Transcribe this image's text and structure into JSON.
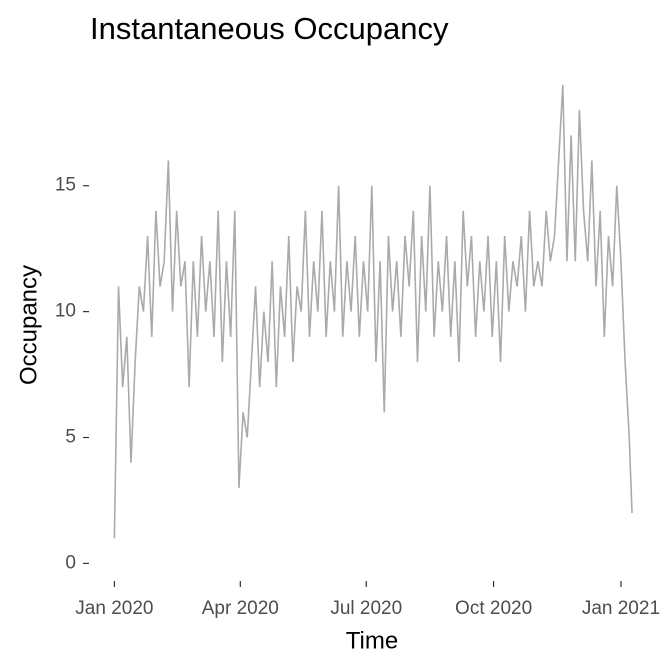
{
  "chart_data": {
    "type": "line",
    "title": "Instantaneous Occupancy",
    "x_label": "Time",
    "y_label": "Occupancy",
    "x": [
      0,
      3,
      6,
      9,
      12,
      15,
      18,
      21,
      24,
      27,
      30,
      33,
      36,
      39,
      42,
      45,
      48,
      51,
      54,
      57,
      60,
      63,
      66,
      69,
      72,
      75,
      78,
      81,
      84,
      87,
      90,
      93,
      96,
      99,
      102,
      105,
      108,
      111,
      114,
      117,
      120,
      123,
      126,
      129,
      132,
      135,
      138,
      141,
      144,
      147,
      150,
      153,
      156,
      159,
      162,
      165,
      168,
      171,
      174,
      177,
      180,
      183,
      186,
      189,
      192,
      195,
      198,
      201,
      204,
      207,
      210,
      213,
      216,
      219,
      222,
      225,
      228,
      231,
      234,
      237,
      240,
      243,
      246,
      249,
      252,
      255,
      258,
      261,
      264,
      267,
      270,
      273,
      276,
      279,
      282,
      285,
      288,
      291,
      294,
      297,
      300,
      303,
      306,
      309,
      312,
      315,
      318,
      321,
      324,
      327,
      330,
      333,
      336,
      339,
      342,
      345,
      348,
      351,
      354,
      357,
      360,
      363,
      366,
      369,
      372,
      374
    ],
    "series": [
      {
        "name": "Occupancy",
        "color": "#aaaaaa",
        "values": [
          1,
          11,
          7,
          9,
          4,
          8,
          11,
          10,
          13,
          9,
          14,
          11,
          12,
          16,
          10,
          14,
          11,
          12,
          7,
          12,
          9,
          13,
          10,
          12,
          9,
          14,
          8,
          12,
          9,
          14,
          3,
          6,
          5,
          8,
          11,
          7,
          10,
          8,
          12,
          7,
          11,
          9,
          13,
          8,
          11,
          10,
          14,
          9,
          12,
          10,
          14,
          9,
          12,
          10,
          15,
          9,
          12,
          10,
          13,
          9,
          12,
          10,
          15,
          8,
          12,
          6,
          13,
          10,
          12,
          9,
          13,
          11,
          14,
          8,
          13,
          10,
          15,
          9,
          12,
          10,
          13,
          9,
          12,
          8,
          14,
          11,
          13,
          9,
          12,
          10,
          13,
          9,
          12,
          8,
          13,
          10,
          12,
          11,
          13,
          10,
          14,
          11,
          12,
          11,
          14,
          12,
          13,
          16,
          19,
          12,
          17,
          12,
          18,
          14,
          12,
          16,
          11,
          14,
          9,
          13,
          11,
          15,
          12,
          8,
          5,
          2
        ]
      }
    ],
    "xlim": [
      -14,
      387
    ],
    "ylim": [
      -0.5,
      19
    ],
    "xticks": [
      {
        "value": 0,
        "label": "Jan 2020"
      },
      {
        "value": 91,
        "label": "Apr 2020"
      },
      {
        "value": 182,
        "label": "Jul 2020"
      },
      {
        "value": 274,
        "label": "Oct 2020"
      },
      {
        "value": 366,
        "label": "Jan 2021"
      }
    ],
    "yticks": [
      0,
      5,
      10,
      15
    ],
    "grid": false
  }
}
